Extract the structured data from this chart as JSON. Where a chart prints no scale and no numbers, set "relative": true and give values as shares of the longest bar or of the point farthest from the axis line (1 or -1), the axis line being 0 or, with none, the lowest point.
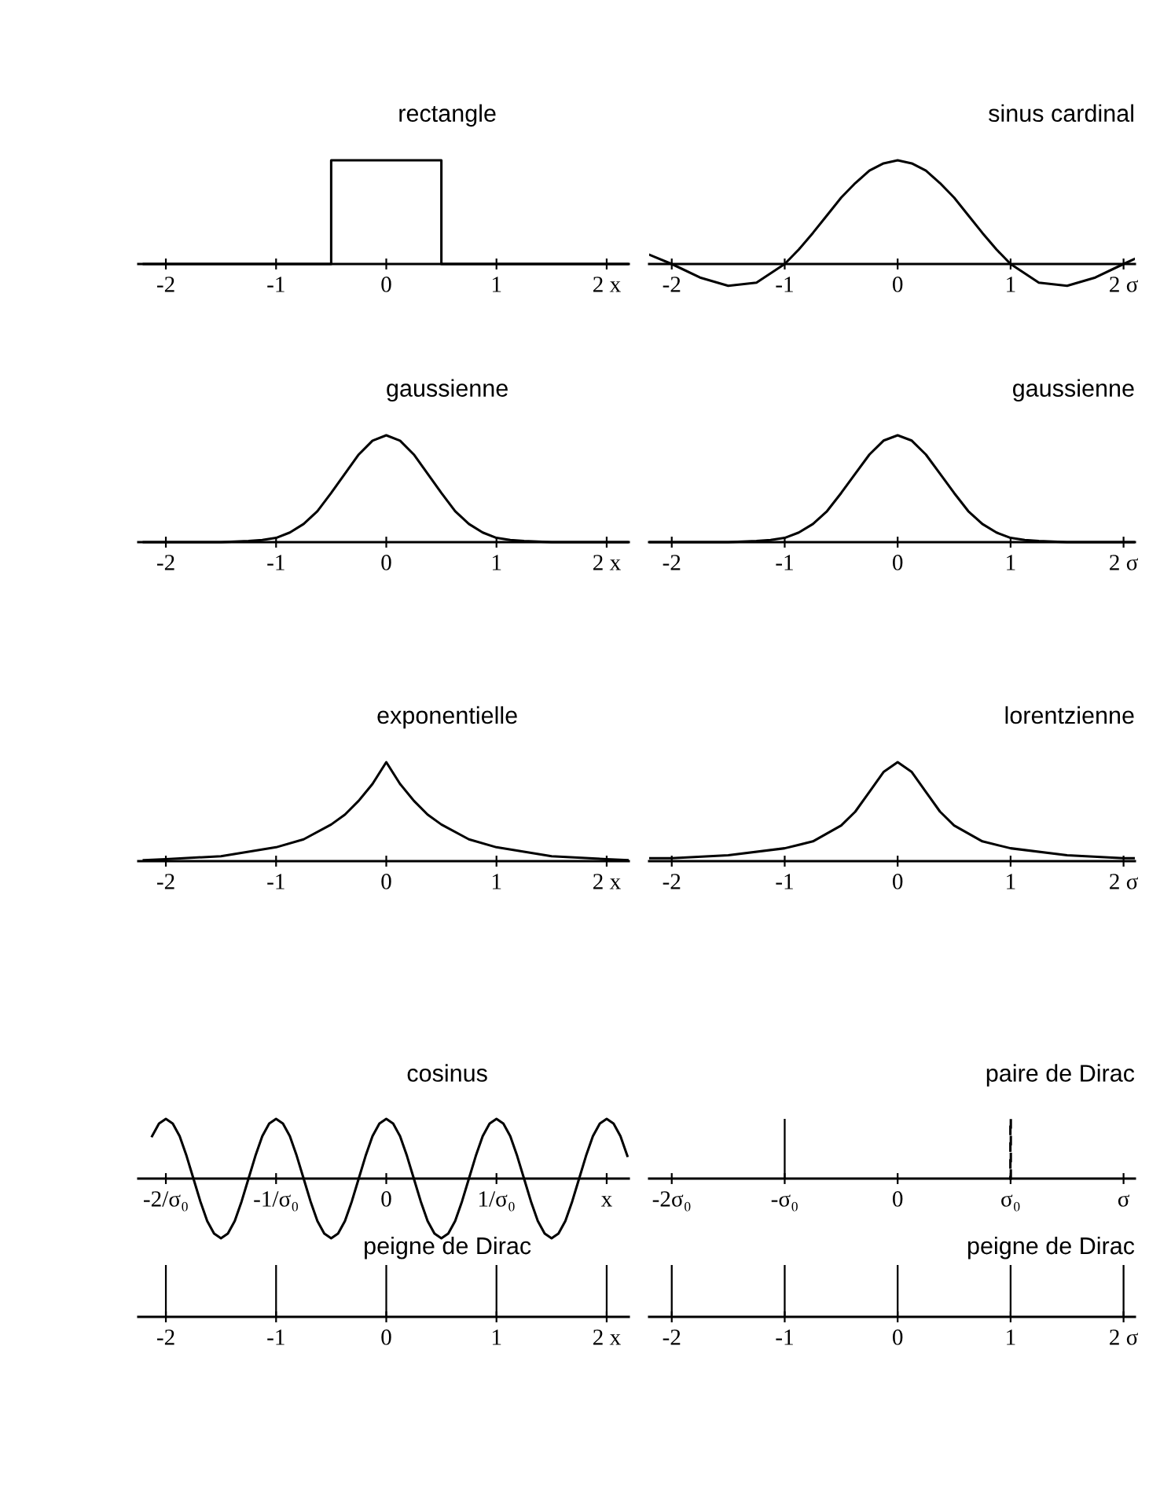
{
  "chart_data": [
    {
      "type": "line",
      "title": "rectangle",
      "relative": true,
      "xlim": [
        -2.25,
        2.2
      ],
      "xticks": [
        -2,
        -1,
        0,
        1,
        {
          "value": 2,
          "label": "2 x"
        }
      ],
      "series": [
        {
          "color": "#000000",
          "x": [
            -2.2,
            -0.5,
            -0.5,
            0.5,
            0.5,
            2.2
          ],
          "values": [
            0,
            0,
            1,
            1,
            0,
            0
          ]
        }
      ]
    },
    {
      "type": "line",
      "title": "sinus cardinal",
      "relative": true,
      "xlim": [
        -2.2,
        2.1
      ],
      "xticks": [
        -2,
        -1,
        0,
        1,
        {
          "value": 2,
          "label": "2 σ"
        }
      ],
      "series": [
        {
          "color": "#000000",
          "x": [
            -2.2,
            -2,
            -1.75,
            -1.5,
            -1.25,
            -1,
            -0.875,
            -0.75,
            -0.625,
            -0.5,
            -0.375,
            -0.25,
            -0.125,
            0,
            0.125,
            0.25,
            0.375,
            0.5,
            0.625,
            0.75,
            0.875,
            1,
            1.25,
            1.5,
            1.75,
            2,
            2.1
          ],
          "values": [
            0.09,
            0,
            -0.13,
            -0.21,
            -0.18,
            0,
            0.14,
            0.3,
            0.47,
            0.64,
            0.78,
            0.9,
            0.97,
            1,
            0.97,
            0.9,
            0.78,
            0.64,
            0.47,
            0.3,
            0.14,
            0,
            -0.18,
            -0.21,
            -0.13,
            0,
            0.05
          ]
        }
      ]
    },
    {
      "type": "line",
      "title": "gaussienne",
      "relative": true,
      "xlim": [
        -2.25,
        2.2
      ],
      "xticks": [
        -2,
        -1,
        0,
        1,
        {
          "value": 2,
          "label": "2 x"
        }
      ],
      "series": [
        {
          "color": "#000000",
          "x": [
            -2.2,
            -2,
            -1.5,
            -1.25,
            -1.125,
            -1,
            -0.875,
            -0.75,
            -0.625,
            -0.5,
            -0.375,
            -0.25,
            -0.125,
            0,
            0.125,
            0.25,
            0.375,
            0.5,
            0.625,
            0.75,
            0.875,
            1,
            1.125,
            1.25,
            1.5,
            2,
            2.2
          ],
          "values": [
            0,
            0,
            0,
            0.01,
            0.02,
            0.04,
            0.09,
            0.17,
            0.29,
            0.46,
            0.64,
            0.82,
            0.95,
            1,
            0.95,
            0.82,
            0.64,
            0.46,
            0.29,
            0.17,
            0.09,
            0.04,
            0.02,
            0.01,
            0,
            0,
            0
          ]
        }
      ]
    },
    {
      "type": "line",
      "title": "gaussienne",
      "relative": true,
      "xlim": [
        -2.2,
        2.1
      ],
      "xticks": [
        -2,
        -1,
        0,
        1,
        {
          "value": 2,
          "label": "2 σ"
        }
      ],
      "series": [
        {
          "color": "#000000",
          "x": [
            -2.2,
            -2,
            -1.5,
            -1.25,
            -1.125,
            -1,
            -0.875,
            -0.75,
            -0.625,
            -0.5,
            -0.375,
            -0.25,
            -0.125,
            0,
            0.125,
            0.25,
            0.375,
            0.5,
            0.625,
            0.75,
            0.875,
            1,
            1.125,
            1.25,
            1.5,
            2,
            2.1
          ],
          "values": [
            0,
            0,
            0,
            0.01,
            0.02,
            0.04,
            0.09,
            0.17,
            0.29,
            0.46,
            0.64,
            0.82,
            0.95,
            1,
            0.95,
            0.82,
            0.64,
            0.46,
            0.29,
            0.17,
            0.09,
            0.04,
            0.02,
            0.01,
            0,
            0,
            0
          ]
        }
      ]
    },
    {
      "type": "line",
      "title": "exponentielle",
      "relative": true,
      "xlim": [
        -2.25,
        2.2
      ],
      "xticks": [
        -2,
        -1,
        0,
        1,
        {
          "value": 2,
          "label": "2 x"
        }
      ],
      "series": [
        {
          "color": "#000000",
          "x": [
            -2.2,
            -2,
            -1.5,
            -1,
            -0.75,
            -0.5,
            -0.375,
            -0.25,
            -0.125,
            0,
            0.125,
            0.25,
            0.375,
            0.5,
            0.75,
            1,
            1.5,
            2,
            2.2
          ],
          "values": [
            0.01,
            0.02,
            0.05,
            0.14,
            0.22,
            0.37,
            0.47,
            0.61,
            0.78,
            1,
            0.78,
            0.61,
            0.47,
            0.37,
            0.22,
            0.14,
            0.05,
            0.02,
            0.01
          ]
        }
      ]
    },
    {
      "type": "line",
      "title": "lorentzienne",
      "relative": true,
      "xlim": [
        -2.2,
        2.1
      ],
      "xticks": [
        -2,
        -1,
        0,
        1,
        {
          "value": 2,
          "label": "2 σ"
        }
      ],
      "series": [
        {
          "color": "#000000",
          "x": [
            -2.2,
            -2,
            -1.5,
            -1,
            -0.75,
            -0.5,
            -0.375,
            -0.25,
            -0.125,
            0,
            0.125,
            0.25,
            0.375,
            0.5,
            0.75,
            1,
            1.5,
            2,
            2.1
          ],
          "values": [
            0.03,
            0.03,
            0.06,
            0.13,
            0.2,
            0.36,
            0.5,
            0.7,
            0.9,
            1,
            0.9,
            0.7,
            0.5,
            0.36,
            0.2,
            0.13,
            0.06,
            0.03,
            0.03
          ]
        }
      ]
    },
    {
      "type": "line",
      "title": "cosinus",
      "relative": true,
      "xlim": [
        -2.25,
        2.2
      ],
      "xticks": [
        {
          "value": -2,
          "label": "-2/σ₀"
        },
        {
          "value": -1,
          "label": "-1/σ₀"
        },
        0,
        {
          "value": 1,
          "label": "1/σ₀"
        },
        {
          "value": 2,
          "label": "x"
        }
      ],
      "series": [
        {
          "color": "#000000",
          "x": [
            -2.125,
            -2.0625,
            -2,
            -1.9375,
            -1.875,
            -1.8125,
            -1.75,
            -1.6875,
            -1.625,
            -1.5625,
            -1.5,
            -1.4375,
            -1.375,
            -1.3125,
            -1.25,
            -1.1875,
            -1.125,
            -1.0625,
            -1,
            -0.9375,
            -0.875,
            -0.8125,
            -0.75,
            -0.6875,
            -0.625,
            -0.5625,
            -0.5,
            -0.4375,
            -0.375,
            -0.3125,
            -0.25,
            -0.1875,
            -0.125,
            -0.0625,
            0,
            0.0625,
            0.125,
            0.1875,
            0.25,
            0.3125,
            0.375,
            0.4375,
            0.5,
            0.5625,
            0.625,
            0.6875,
            0.75,
            0.8125,
            0.875,
            0.9375,
            1,
            1.0625,
            1.125,
            1.1875,
            1.25,
            1.3125,
            1.375,
            1.4375,
            1.5,
            1.5625,
            1.625,
            1.6875,
            1.75,
            1.8125,
            1.875,
            1.9375,
            2,
            2.0625,
            2.125,
            2.1875
          ],
          "values": [
            0.71,
            0.92,
            1,
            0.92,
            0.71,
            0.38,
            0,
            -0.38,
            -0.71,
            -0.92,
            -1,
            -0.92,
            -0.71,
            -0.38,
            0,
            0.38,
            0.71,
            0.92,
            1,
            0.92,
            0.71,
            0.38,
            0,
            -0.38,
            -0.71,
            -0.92,
            -1,
            -0.92,
            -0.71,
            -0.38,
            0,
            0.38,
            0.71,
            0.92,
            1,
            0.92,
            0.71,
            0.38,
            0,
            -0.38,
            -0.71,
            -0.92,
            -1,
            -0.92,
            -0.71,
            -0.38,
            0,
            0.38,
            0.71,
            0.92,
            1,
            0.92,
            0.71,
            0.38,
            0,
            -0.38,
            -0.71,
            -0.92,
            -1,
            -0.92,
            -0.71,
            -0.38,
            0,
            0.38,
            0.71,
            0.92,
            1,
            0.92,
            0.71,
            0.38
          ]
        }
      ]
    },
    {
      "type": "bar",
      "title": "paire de Dirac",
      "relative": true,
      "xlim": [
        -2.2,
        2.1
      ],
      "xticks": [
        {
          "value": -2,
          "label": "-2σ₀"
        },
        {
          "value": -1,
          "label": "-σ₀"
        },
        0,
        {
          "value": 1,
          "label": "σ₀"
        },
        {
          "value": 2,
          "label": "σ"
        }
      ],
      "series": [
        {
          "color": "#000000",
          "x": [
            -1
          ],
          "values": [
            1
          ]
        },
        {
          "color": "#000000",
          "x": [
            1
          ],
          "values": [
            1
          ],
          "line_style": "dashed"
        }
      ]
    },
    {
      "type": "bar",
      "title": "peigne de Dirac",
      "relative": true,
      "xlim": [
        -2.25,
        2.2
      ],
      "xticks": [
        -2,
        -1,
        0,
        1,
        {
          "value": 2,
          "label": "2 x"
        }
      ],
      "series": [
        {
          "color": "#000000",
          "x": [
            -2,
            -1,
            0,
            1,
            2
          ],
          "values": [
            1,
            1,
            1,
            1,
            1
          ]
        }
      ]
    },
    {
      "type": "bar",
      "title": "peigne de Dirac",
      "relative": true,
      "xlim": [
        -2.2,
        2.1
      ],
      "xticks": [
        -2,
        -1,
        0,
        1,
        {
          "value": 2,
          "label": "2 σ"
        }
      ],
      "series": [
        {
          "color": "#000000",
          "x": [
            -2,
            -1,
            0,
            1,
            2
          ],
          "values": [
            1,
            1,
            1,
            1,
            1
          ]
        }
      ]
    }
  ]
}
